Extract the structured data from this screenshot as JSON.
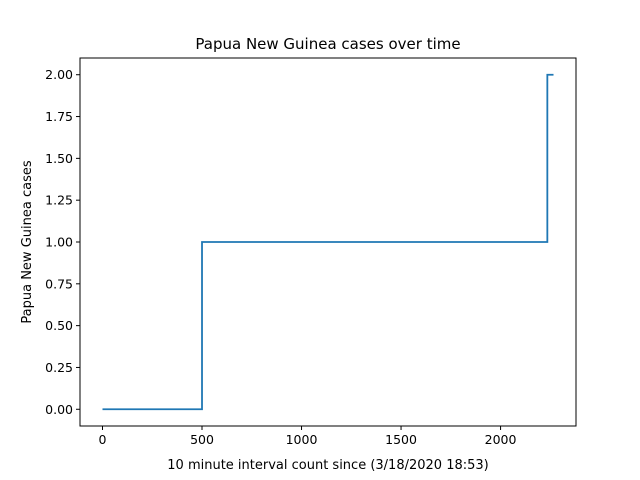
{
  "chart_data": {
    "type": "line",
    "step": "post",
    "title": "Papua New Guinea cases over time",
    "xlabel": "10 minute interval count since (3/18/2020 18:53)",
    "ylabel": "Papua New Guinea cases",
    "xlim": [
      -113,
      2379
    ],
    "ylim": [
      -0.1,
      2.1
    ],
    "xticks": [
      0,
      500,
      1000,
      1500,
      2000
    ],
    "xtick_labels": [
      "0",
      "500",
      "1000",
      "1500",
      "2000"
    ],
    "yticks": [
      0,
      0.25,
      0.5,
      0.75,
      1.0,
      1.25,
      1.5,
      1.75,
      2.0
    ],
    "ytick_labels": [
      "0.00",
      "0.25",
      "0.50",
      "0.75",
      "1.00",
      "1.25",
      "1.50",
      "1.75",
      "2.00"
    ],
    "grid": false,
    "line_color": "#1f77b4",
    "x": [
      0,
      500,
      2235,
      2266
    ],
    "y": [
      0,
      1,
      2,
      2
    ]
  }
}
